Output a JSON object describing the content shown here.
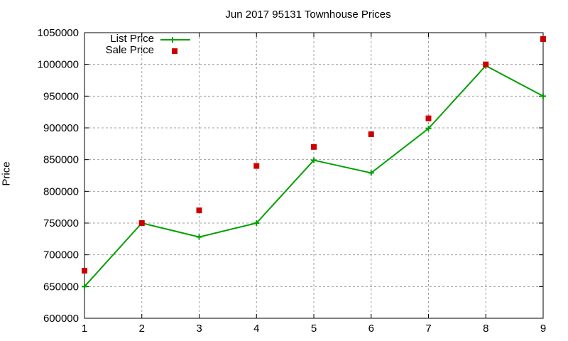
{
  "chart_data": {
    "type": "line",
    "title": "Jun 2017 95131 Townhouse Prices",
    "xlabel": "",
    "ylabel": "Price",
    "x": [
      1,
      2,
      3,
      4,
      5,
      6,
      7,
      8,
      9
    ],
    "xlim": [
      1,
      9
    ],
    "ylim": [
      600000,
      1050000
    ],
    "yticks": [
      600000,
      650000,
      700000,
      750000,
      800000,
      850000,
      900000,
      950000,
      1000000,
      1050000
    ],
    "xticks": [
      1,
      2,
      3,
      4,
      5,
      6,
      7,
      8,
      9
    ],
    "grid": true,
    "legend_position": "top-left",
    "series": [
      {
        "name": "List Price",
        "style": "linespoints",
        "color": "#00a000",
        "marker": "plus",
        "values": [
          650000,
          750000,
          728000,
          750000,
          849000,
          829000,
          899000,
          998000,
          950000
        ]
      },
      {
        "name": "Sale Price",
        "style": "points",
        "color": "#cc0000",
        "marker": "square",
        "values": [
          675000,
          750000,
          770000,
          840000,
          870000,
          890000,
          915000,
          1000000,
          1040000
        ]
      }
    ]
  }
}
